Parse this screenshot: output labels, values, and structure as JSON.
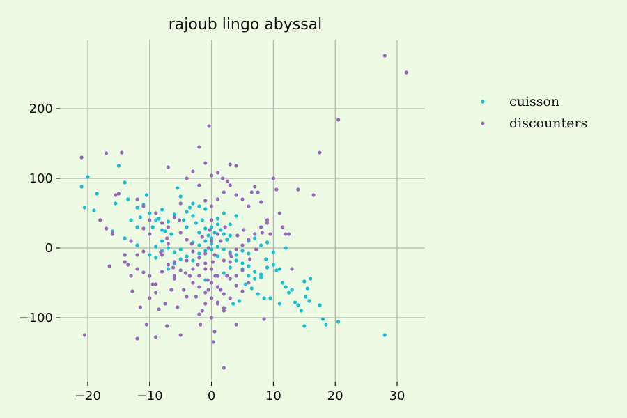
{
  "chart_data": {
    "type": "scatter",
    "title": "rajoub lingo abyssal",
    "xlabel": "",
    "ylabel": "",
    "xlim": [
      -24.5,
      34.5
    ],
    "ylim": [
      -192,
      298
    ],
    "x_ticks": [
      -20,
      -10,
      0,
      10,
      20,
      30
    ],
    "x_tick_labels": [
      "−20",
      "−10",
      "0",
      "10",
      "20",
      "30"
    ],
    "y_ticks": [
      -100,
      0,
      100,
      200
    ],
    "y_tick_labels": [
      "−100",
      "0",
      "100",
      "200"
    ],
    "grid": true,
    "legend_position": "right",
    "series": [
      {
        "name": "cuisson",
        "color": "#17becf",
        "points": [
          [
            -21,
            88
          ],
          [
            -20,
            102
          ],
          [
            -20.5,
            58
          ],
          [
            -18.5,
            78
          ],
          [
            -19,
            54
          ],
          [
            -15,
            118
          ],
          [
            -15.5,
            64
          ],
          [
            -14,
            94
          ],
          [
            -13.5,
            70
          ],
          [
            -12,
            58
          ],
          [
            -11.5,
            44
          ],
          [
            -11,
            62
          ],
          [
            -10.5,
            76
          ],
          [
            -10,
            50
          ],
          [
            -9.5,
            30
          ],
          [
            -9,
            40
          ],
          [
            -8.5,
            42
          ],
          [
            -8,
            55
          ],
          [
            -7.5,
            24
          ],
          [
            -7,
            38
          ],
          [
            -6.5,
            20
          ],
          [
            -6,
            48
          ],
          [
            -5.5,
            86
          ],
          [
            -5,
            74
          ],
          [
            -4.5,
            40
          ],
          [
            -4,
            30
          ],
          [
            -3.5,
            58
          ],
          [
            -3,
            64
          ],
          [
            -2.5,
            36
          ],
          [
            -2,
            22
          ],
          [
            -1.5,
            40
          ],
          [
            -1,
            28
          ],
          [
            -0.5,
            18
          ],
          [
            0,
            14
          ],
          [
            0.5,
            22
          ],
          [
            1,
            34
          ],
          [
            1.5,
            26
          ],
          [
            2,
            20
          ],
          [
            2.5,
            12
          ],
          [
            3,
            18
          ],
          [
            -3,
            8
          ],
          [
            -2,
            4
          ],
          [
            -1,
            10
          ],
          [
            0,
            6
          ],
          [
            1,
            2
          ],
          [
            2,
            -2
          ],
          [
            3,
            -6
          ],
          [
            4,
            -10
          ],
          [
            -4,
            -12
          ],
          [
            -3,
            -18
          ],
          [
            -2,
            -8
          ],
          [
            -1,
            -4
          ],
          [
            0,
            -2
          ],
          [
            1,
            -12
          ],
          [
            -5,
            -16
          ],
          [
            -6,
            -22
          ],
          [
            -7,
            -30
          ],
          [
            -8,
            -4
          ],
          [
            -9,
            -14
          ],
          [
            5,
            -30
          ],
          [
            6,
            -40
          ],
          [
            7,
            -44
          ],
          [
            8,
            -38
          ],
          [
            9,
            -28
          ],
          [
            10,
            -24
          ],
          [
            10.5,
            -32
          ],
          [
            11,
            -30
          ],
          [
            11.5,
            -50
          ],
          [
            12,
            -56
          ],
          [
            12.5,
            -64
          ],
          [
            13,
            -60
          ],
          [
            13.5,
            -78
          ],
          [
            14,
            -82
          ],
          [
            15,
            -48
          ],
          [
            15.5,
            -58
          ],
          [
            16,
            -44
          ],
          [
            15.2,
            -70
          ],
          [
            15.8,
            -76
          ],
          [
            14.5,
            -90
          ],
          [
            17.5,
            -82
          ],
          [
            18,
            -102
          ],
          [
            18.5,
            -110
          ],
          [
            15,
            -112
          ],
          [
            20.5,
            -106
          ],
          [
            28,
            -125
          ],
          [
            4,
            -18
          ],
          [
            5,
            -22
          ],
          [
            6,
            -26
          ],
          [
            7,
            -34
          ],
          [
            8,
            -42
          ],
          [
            3,
            -28
          ],
          [
            2,
            -36
          ],
          [
            1,
            -40
          ],
          [
            -1,
            -46
          ],
          [
            5.5,
            -52
          ],
          [
            6.5,
            -58
          ],
          [
            7.5,
            -66
          ],
          [
            8.5,
            -72
          ],
          [
            4.5,
            -76
          ],
          [
            3.5,
            -80
          ],
          [
            9.5,
            -72
          ],
          [
            11,
            -80
          ],
          [
            -16,
            24
          ],
          [
            -14,
            14
          ],
          [
            -12,
            4
          ],
          [
            -10,
            -10
          ],
          [
            -12,
            30
          ],
          [
            -13,
            40
          ],
          [
            -8,
            10
          ],
          [
            -7,
            0
          ],
          [
            -6,
            -6
          ],
          [
            -5,
            -2
          ],
          [
            6,
            10
          ],
          [
            7,
            14
          ],
          [
            8,
            4
          ],
          [
            9,
            8
          ],
          [
            12,
            0
          ],
          [
            10,
            -6
          ],
          [
            8.8,
            -16
          ],
          [
            3,
            34
          ],
          [
            4,
            46
          ],
          [
            2,
            50
          ],
          [
            1,
            42
          ],
          [
            0,
            30
          ],
          [
            -1,
            56
          ],
          [
            -2,
            60
          ],
          [
            -3,
            46
          ],
          [
            -4,
            52
          ],
          [
            -8,
            26
          ],
          [
            -9,
            2
          ],
          [
            5,
            -4
          ],
          [
            6,
            -8
          ]
        ]
      },
      {
        "name": "discounters",
        "color": "#9467bd",
        "points": [
          [
            -21,
            130
          ],
          [
            -20.5,
            -125
          ],
          [
            -17,
            136
          ],
          [
            -16.5,
            -26
          ],
          [
            -16,
            20
          ],
          [
            -15.5,
            76
          ],
          [
            -15,
            78
          ],
          [
            -14.5,
            137
          ],
          [
            -14,
            -20
          ],
          [
            -13.5,
            -24
          ],
          [
            -13,
            10
          ],
          [
            -12.8,
            -62
          ],
          [
            -12,
            -130
          ],
          [
            -11.5,
            -85
          ],
          [
            -11,
            -35
          ],
          [
            -10.5,
            -110
          ],
          [
            -10,
            -40
          ],
          [
            -9.5,
            -52
          ],
          [
            -9,
            -128
          ],
          [
            -8.5,
            -88
          ],
          [
            -7.5,
            -80
          ],
          [
            -7.2,
            -112
          ],
          [
            -7,
            116
          ],
          [
            -6.5,
            -60
          ],
          [
            -6,
            -40
          ],
          [
            -5.5,
            -85
          ],
          [
            -5,
            -125
          ],
          [
            -4.5,
            -60
          ],
          [
            -4,
            -70
          ],
          [
            -3.5,
            -40
          ],
          [
            -3,
            -30
          ],
          [
            -2.5,
            -70
          ],
          [
            -2,
            -95
          ],
          [
            -1.8,
            -110
          ],
          [
            -1.5,
            -90
          ],
          [
            -1,
            -80
          ],
          [
            -0.5,
            -60
          ],
          [
            0,
            -100
          ],
          [
            0.3,
            -135
          ],
          [
            0.5,
            -120
          ],
          [
            1,
            -80
          ],
          [
            1.5,
            -60
          ],
          [
            2,
            -90
          ],
          [
            2.5,
            -40
          ],
          [
            3,
            -20
          ],
          [
            -2,
            145
          ],
          [
            -0.4,
            175
          ],
          [
            1,
            108
          ],
          [
            3,
            120
          ],
          [
            4,
            118
          ],
          [
            5,
            70
          ],
          [
            6,
            60
          ],
          [
            6.5,
            80
          ],
          [
            7,
            88
          ],
          [
            7.5,
            80
          ],
          [
            8,
            66
          ],
          [
            8.5,
            -102
          ],
          [
            9,
            40
          ],
          [
            9.5,
            20
          ],
          [
            10,
            100
          ],
          [
            10.5,
            84
          ],
          [
            11,
            50
          ],
          [
            11.5,
            30
          ],
          [
            12,
            20
          ],
          [
            12.5,
            20
          ],
          [
            13,
            -30
          ],
          [
            14,
            84
          ],
          [
            16.5,
            76
          ],
          [
            17.5,
            137
          ],
          [
            20.5,
            184
          ],
          [
            28,
            276
          ],
          [
            31.5,
            252
          ],
          [
            2,
            -172
          ],
          [
            4,
            -110
          ],
          [
            -3,
            110
          ],
          [
            -1,
            122
          ],
          [
            0,
            104
          ],
          [
            1.8,
            100
          ],
          [
            2.6,
            96
          ],
          [
            -18,
            40
          ],
          [
            -17,
            28
          ],
          [
            -16,
            22
          ],
          [
            -14,
            -10
          ],
          [
            -12,
            -30
          ],
          [
            -11,
            -5
          ],
          [
            -10,
            20
          ],
          [
            -9,
            -52
          ],
          [
            -8,
            -10
          ],
          [
            -7,
            6
          ],
          [
            -6,
            -20
          ],
          [
            -5,
            22
          ],
          [
            -4,
            12
          ],
          [
            -3,
            -5
          ],
          [
            -2,
            -14
          ],
          [
            -1,
            -22
          ],
          [
            0,
            -30
          ],
          [
            1,
            -40
          ],
          [
            2,
            -18
          ],
          [
            3,
            -8
          ],
          [
            4,
            -2
          ],
          [
            5,
            4
          ],
          [
            6,
            12
          ],
          [
            7,
            20
          ],
          [
            8,
            30
          ],
          [
            9,
            36
          ],
          [
            -13,
            -40
          ],
          [
            -12,
            -10
          ],
          [
            -11,
            28
          ],
          [
            -10,
            -72
          ],
          [
            -9,
            -64
          ],
          [
            -8,
            -34
          ],
          [
            -7,
            -24
          ],
          [
            -6,
            -44
          ],
          [
            -5,
            -32
          ],
          [
            -4,
            -18
          ],
          [
            -3,
            -50
          ],
          [
            -2,
            -40
          ],
          [
            -1,
            -30
          ],
          [
            0,
            -50
          ],
          [
            1,
            -56
          ],
          [
            2,
            -66
          ],
          [
            3,
            -72
          ],
          [
            4,
            -40
          ],
          [
            5,
            -32
          ],
          [
            6,
            -50
          ],
          [
            0,
            60
          ],
          [
            1,
            70
          ],
          [
            2,
            80
          ],
          [
            3,
            90
          ],
          [
            4,
            76
          ],
          [
            -1,
            68
          ],
          [
            -2,
            90
          ],
          [
            -4,
            100
          ],
          [
            -5,
            64
          ],
          [
            -6,
            44
          ],
          [
            -7,
            30
          ],
          [
            -8,
            36
          ],
          [
            -9,
            50
          ],
          [
            -10,
            40
          ],
          [
            -11,
            60
          ],
          [
            -12,
            70
          ],
          [
            3,
            -44
          ],
          [
            4,
            -54
          ],
          [
            5,
            -62
          ],
          [
            -2,
            -56
          ],
          [
            -1,
            -64
          ],
          [
            0,
            -72
          ],
          [
            1,
            -78
          ],
          [
            2,
            -86
          ],
          [
            0,
            10
          ],
          [
            0.5,
            -10
          ],
          [
            -0.5,
            0
          ],
          [
            1,
            20
          ],
          [
            -1,
            -8
          ],
          [
            0,
            40
          ],
          [
            0.2,
            -20
          ],
          [
            -0.3,
            26
          ],
          [
            0.6,
            -40
          ],
          [
            -0.6,
            -46
          ],
          [
            1.5,
            10
          ],
          [
            -1.5,
            16
          ],
          [
            2.2,
            30
          ],
          [
            -2.2,
            -24
          ],
          [
            3.2,
            -12
          ],
          [
            -3.2,
            6
          ],
          [
            4.2,
            18
          ],
          [
            -4.2,
            -36
          ],
          [
            5.2,
            26
          ],
          [
            -5.2,
            40
          ],
          [
            6.2,
            -16
          ],
          [
            -6.2,
            -28
          ],
          [
            7.2,
            -2
          ],
          [
            -7.2,
            14
          ],
          [
            8.2,
            22
          ],
          [
            -8.2,
            -6
          ]
        ]
      }
    ]
  }
}
